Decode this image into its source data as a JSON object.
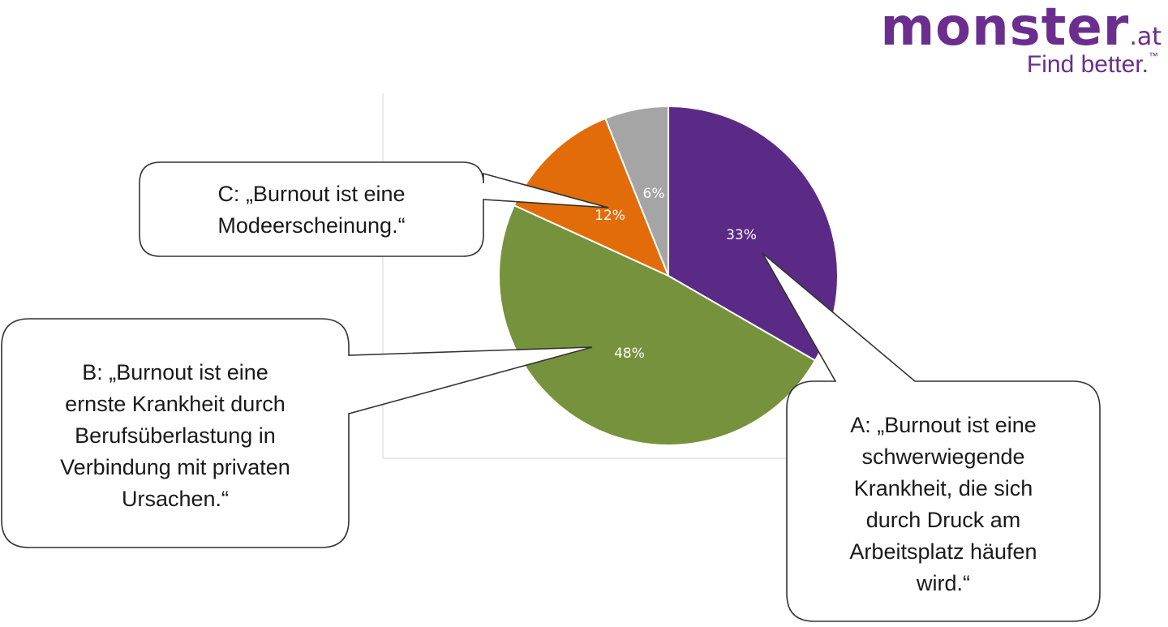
{
  "brand": {
    "logo_word": "monster",
    "logo_tld": ".at",
    "tagline": "Find better.",
    "tagline_mark": "™",
    "color": "#6b2e8f"
  },
  "chart_data": {
    "type": "pie",
    "title": "",
    "slices": [
      {
        "key": "A",
        "value": 33,
        "label": "33%",
        "color": "#5b2a86",
        "label_color": "#ffffff"
      },
      {
        "key": "B",
        "value": 48,
        "label": "48%",
        "color": "#76923c",
        "label_color": "#ffffff"
      },
      {
        "key": "C",
        "value": 12,
        "label": "12%",
        "color": "#e36c0a",
        "label_color": "#ffffff"
      },
      {
        "key": "D",
        "value": 6,
        "label": "6%",
        "color": "#a5a5a5",
        "label_color": "#ffffff"
      }
    ],
    "callouts": {
      "A": "A: „Burnout ist eine\nschwerwiegende\nKrankheit, die sich\ndurch Druck am\nArbeitsplatz häufen\nwird.“",
      "B": "B: „Burnout ist eine\nernste Krankheit durch\nBerufsüberlastung in\nVerbindung  mit privaten\nUrsachen.“",
      "C": "C: „Burnout ist eine\nModeerscheinung.“"
    }
  }
}
